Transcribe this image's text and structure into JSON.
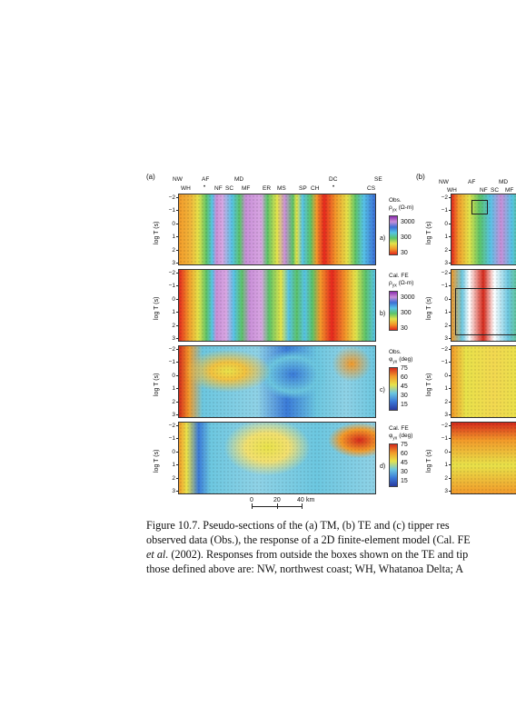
{
  "figure": {
    "panel_a_label": "(a)",
    "panel_b_label": "(b)",
    "region_labels_a": [
      "NW",
      "AF",
      "MD",
      "DC",
      "SE"
    ],
    "site_labels_a": [
      "WH",
      "NF",
      "SC",
      "MF",
      "ER",
      "MS",
      "SP",
      "CH",
      "CS"
    ],
    "region_labels_b": [
      "NW",
      "AF",
      "MD"
    ],
    "site_labels_b": [
      "WH",
      "NF",
      "SC",
      "MF"
    ],
    "y_axis_label": "log T (s)",
    "y_ticks": [
      "−2",
      "−1",
      "0",
      "1",
      "2",
      "3"
    ],
    "subplots": [
      {
        "letter": "a)",
        "legend_line1": "Obs.",
        "legend_line2": "ρ",
        "legend_sub": "yx",
        "legend_unit": "(Ω-m)",
        "ticks": [
          "3000",
          "300",
          "30"
        ]
      },
      {
        "letter": "b)",
        "legend_line1": "Cal. FE",
        "legend_line2": "ρ",
        "legend_sub": "yx",
        "legend_unit": "(Ω-m)",
        "ticks": [
          "3000",
          "300",
          "30"
        ]
      },
      {
        "letter": "c)",
        "legend_line1": "Obs.",
        "legend_line2": "φ",
        "legend_sub": "yx",
        "legend_unit": "(deg)",
        "ticks": [
          "75",
          "60",
          "45",
          "30",
          "15"
        ]
      },
      {
        "letter": "d)",
        "legend_line1": "Cal. FE",
        "legend_line2": "φ",
        "legend_sub": "yx",
        "legend_unit": "(deg)",
        "ticks": [
          "75",
          "60",
          "45",
          "30",
          "15"
        ]
      }
    ],
    "scale_bar": {
      "ticks": [
        "0",
        "20",
        "40"
      ],
      "unit": "km"
    },
    "colors": {
      "resistivity_scale": [
        "#8b2bb0",
        "#c98fd8",
        "#3b6fd6",
        "#57c3e6",
        "#5cc36a",
        "#e3e34a",
        "#f29a2a",
        "#e5281e"
      ],
      "phase_scale": [
        "#d42a1c",
        "#f29a2a",
        "#e8e24a",
        "#6cc7e0",
        "#3a7ad8",
        "#2a3aa0"
      ]
    }
  },
  "caption": {
    "line1": "Figure 10.7.  Pseudo-sections of the (a) TM, (b) TE and (c) tipper res",
    "line2": "observed data (Obs.), the response of a 2D finite-element model (Cal. FE",
    "line3_italic": "et al.",
    "line3_rest": " (2002). Responses from outside the boxes shown on the TE and tip",
    "line4": "those defined above are: NW, northwest coast; WH, Whatanoa Delta; A"
  }
}
